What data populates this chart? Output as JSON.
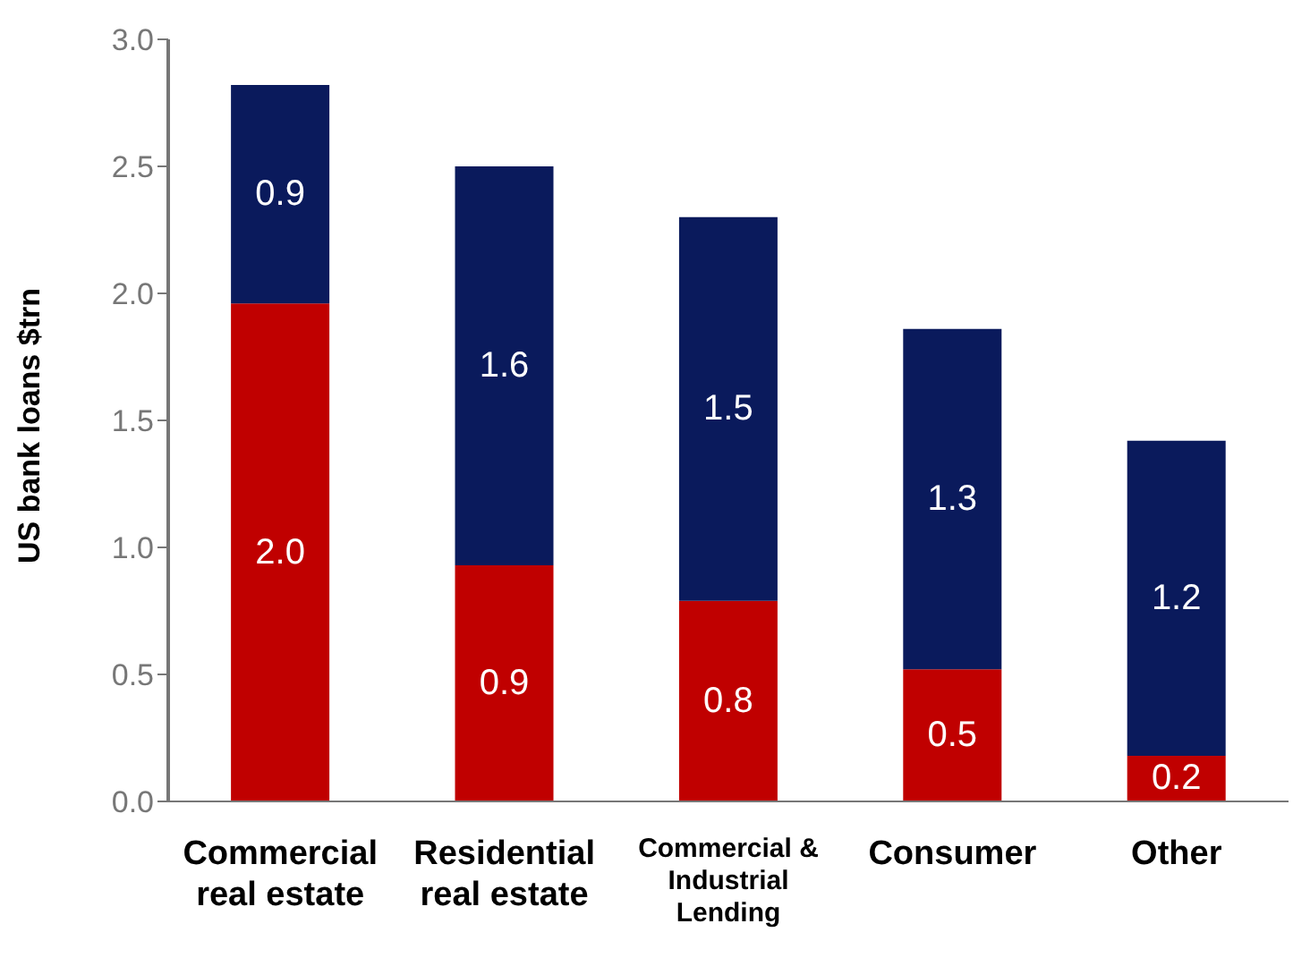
{
  "chart_data": {
    "type": "bar",
    "stacked": true,
    "ylabel": "US bank loans $trn",
    "categories": [
      "Commercial real estate",
      "Residential real estate",
      "Commercial & Industrial Lending",
      "Consumer",
      "Other"
    ],
    "series": [
      {
        "color": "#c00000",
        "values": [
          1.96,
          0.93,
          0.79,
          0.52,
          0.18
        ],
        "value_labels": [
          "2.0",
          "0.9",
          "0.8",
          "0.5",
          "0.2"
        ]
      },
      {
        "color": "#0a1a5c",
        "values": [
          0.86,
          1.57,
          1.51,
          1.34,
          1.24
        ],
        "value_labels": [
          "0.9",
          "1.6",
          "1.5",
          "1.3",
          "1.2"
        ]
      }
    ],
    "ylim": [
      0,
      3
    ],
    "yticks": [
      {
        "value": 0,
        "label": "0.0"
      },
      {
        "value": 0.5,
        "label": "0.5"
      },
      {
        "value": 1,
        "label": "1.0"
      },
      {
        "value": 1.5,
        "label": "1.5"
      },
      {
        "value": 2,
        "label": "2.0"
      },
      {
        "value": 2.5,
        "label": "2.5"
      },
      {
        "value": 3,
        "label": "3.0"
      }
    ],
    "grid": false,
    "legend": false
  }
}
